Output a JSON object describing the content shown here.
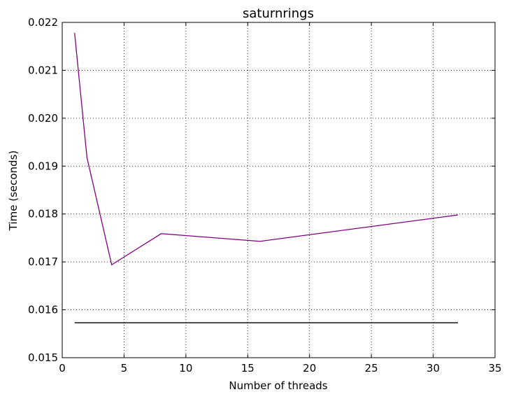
{
  "chart_data": {
    "type": "line",
    "title": "saturnrings",
    "xlabel": "Number of threads",
    "ylabel": "Time (seconds)",
    "xlim": [
      0,
      35
    ],
    "ylim": [
      0.015,
      0.022
    ],
    "xticks": [
      0,
      5,
      10,
      15,
      20,
      25,
      30,
      35
    ],
    "xtick_labels": [
      "0",
      "5",
      "10",
      "15",
      "20",
      "25",
      "30",
      "35"
    ],
    "yticks": [
      0.015,
      0.016,
      0.017,
      0.018,
      0.019,
      0.02,
      0.021,
      0.022
    ],
    "ytick_labels": [
      "0.015",
      "0.016",
      "0.017",
      "0.018",
      "0.019",
      "0.020",
      "0.021",
      "0.022"
    ],
    "grid": true,
    "series": [
      {
        "color": "#800080",
        "x": [
          1,
          2,
          4,
          8,
          16,
          32
        ],
        "y": [
          0.02178,
          0.01918,
          0.01694,
          0.01759,
          0.01743,
          0.01798
        ]
      },
      {
        "color": "#000000",
        "x": [
          1,
          32
        ],
        "y": [
          0.01573,
          0.01573
        ]
      }
    ]
  }
}
